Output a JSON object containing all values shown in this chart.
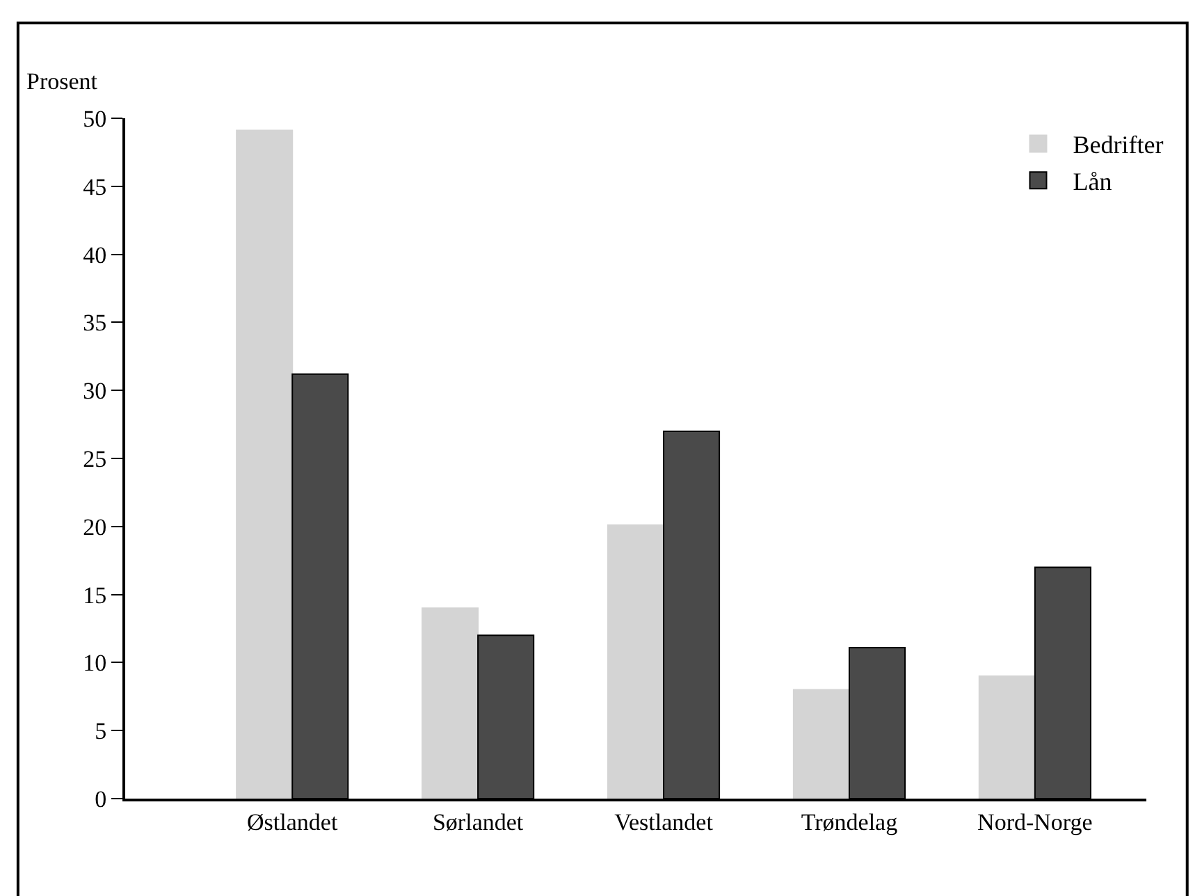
{
  "chart_data": {
    "type": "bar",
    "ylabel": "Prosent",
    "categories": [
      "Østlandet",
      "Sørlandet",
      "Vestlandet",
      "Trøndelag",
      "Nord-Norge"
    ],
    "series": [
      {
        "name": "Bedrifter",
        "color": "#d4d4d4",
        "values": [
          49.1,
          14.0,
          20.1,
          8.0,
          9.0
        ]
      },
      {
        "name": "Lån",
        "color": "#4a4a4a",
        "values": [
          31.2,
          12.0,
          27.0,
          11.1,
          17.0
        ]
      }
    ],
    "ylim": [
      0,
      50
    ],
    "yticks": [
      0,
      5,
      10,
      15,
      20,
      25,
      30,
      35,
      40,
      45,
      50
    ],
    "legend": "top right"
  }
}
